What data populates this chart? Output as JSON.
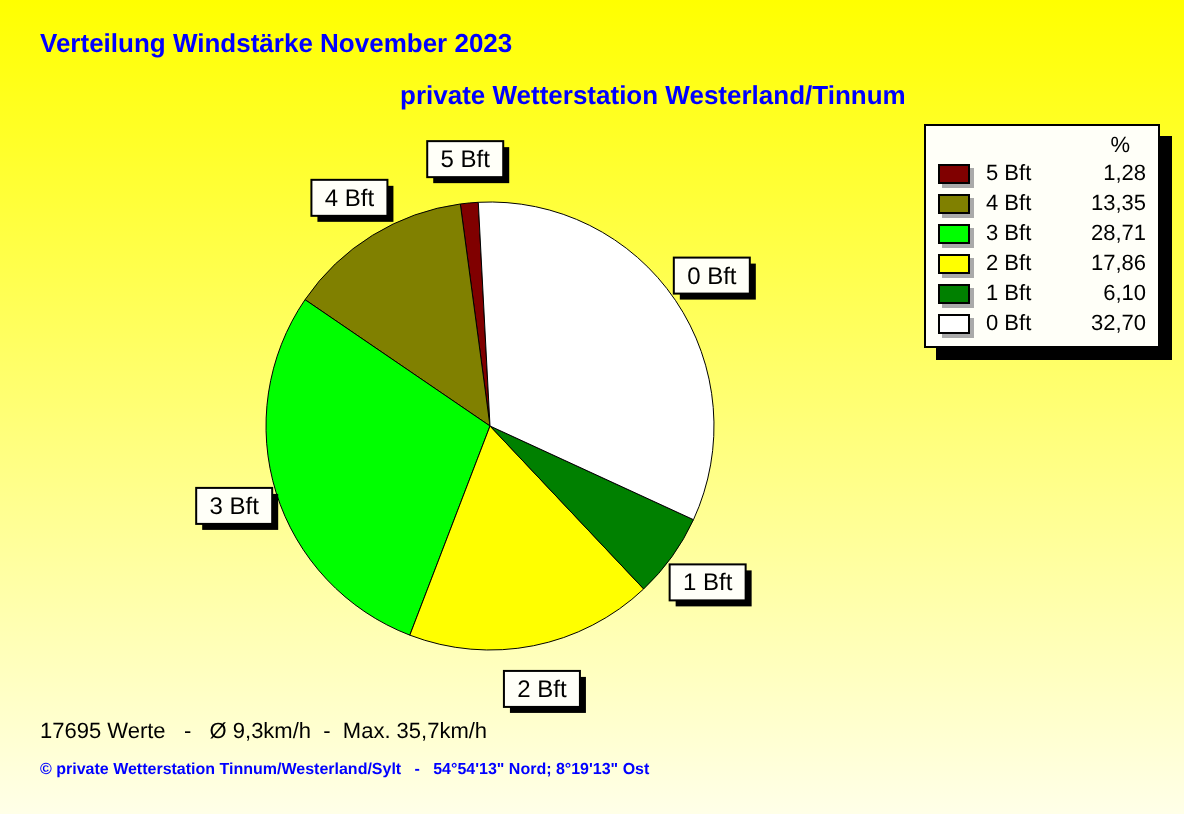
{
  "chart_data": {
    "type": "pie",
    "title": "Verteilung Windstärke  November 2023",
    "subtitle": "private Wetterstation Westerland/Tinnum",
    "categories": [
      "5 Bft",
      "4 Bft",
      "3 Bft",
      "2 Bft",
      "1 Bft",
      "0 Bft"
    ],
    "values": [
      1.28,
      13.35,
      28.71,
      17.86,
      6.1,
      32.7
    ],
    "value_labels": [
      "1,28",
      "13,35",
      "28,71",
      "17,86",
      "6,10",
      "32,70"
    ],
    "colors": [
      "#800000",
      "#808000",
      "#00ff00",
      "#ffff00",
      "#008000",
      "#ffffff"
    ],
    "legend_title": "%",
    "legend": "top right",
    "annotations": [
      "17695 Werte   -   Ø 9,3km/h  -  Max. 35,7km/h",
      "© private Wetterstation Tinnum/Westerland/Sylt   -   54°54'13\" Nord; 8°19'13\" Ost"
    ]
  }
}
